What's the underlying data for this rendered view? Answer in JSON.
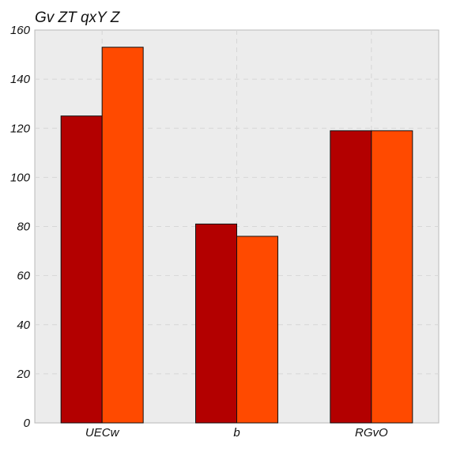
{
  "chart_data": {
    "type": "bar",
    "title": "Gv ZT qxY Z",
    "xlabel": "",
    "ylabel": "",
    "categories": [
      "UECw",
      "b",
      "RGvO"
    ],
    "series": [
      {
        "values": [
          125,
          81,
          119
        ],
        "color": "#b30000"
      },
      {
        "values": [
          153,
          76,
          119
        ],
        "color": "#ff4a00"
      }
    ],
    "ylim": [
      0,
      160
    ],
    "yticks": [
      0,
      20,
      40,
      60,
      80,
      100,
      120,
      140,
      160
    ],
    "grid": true,
    "legend": "none"
  }
}
